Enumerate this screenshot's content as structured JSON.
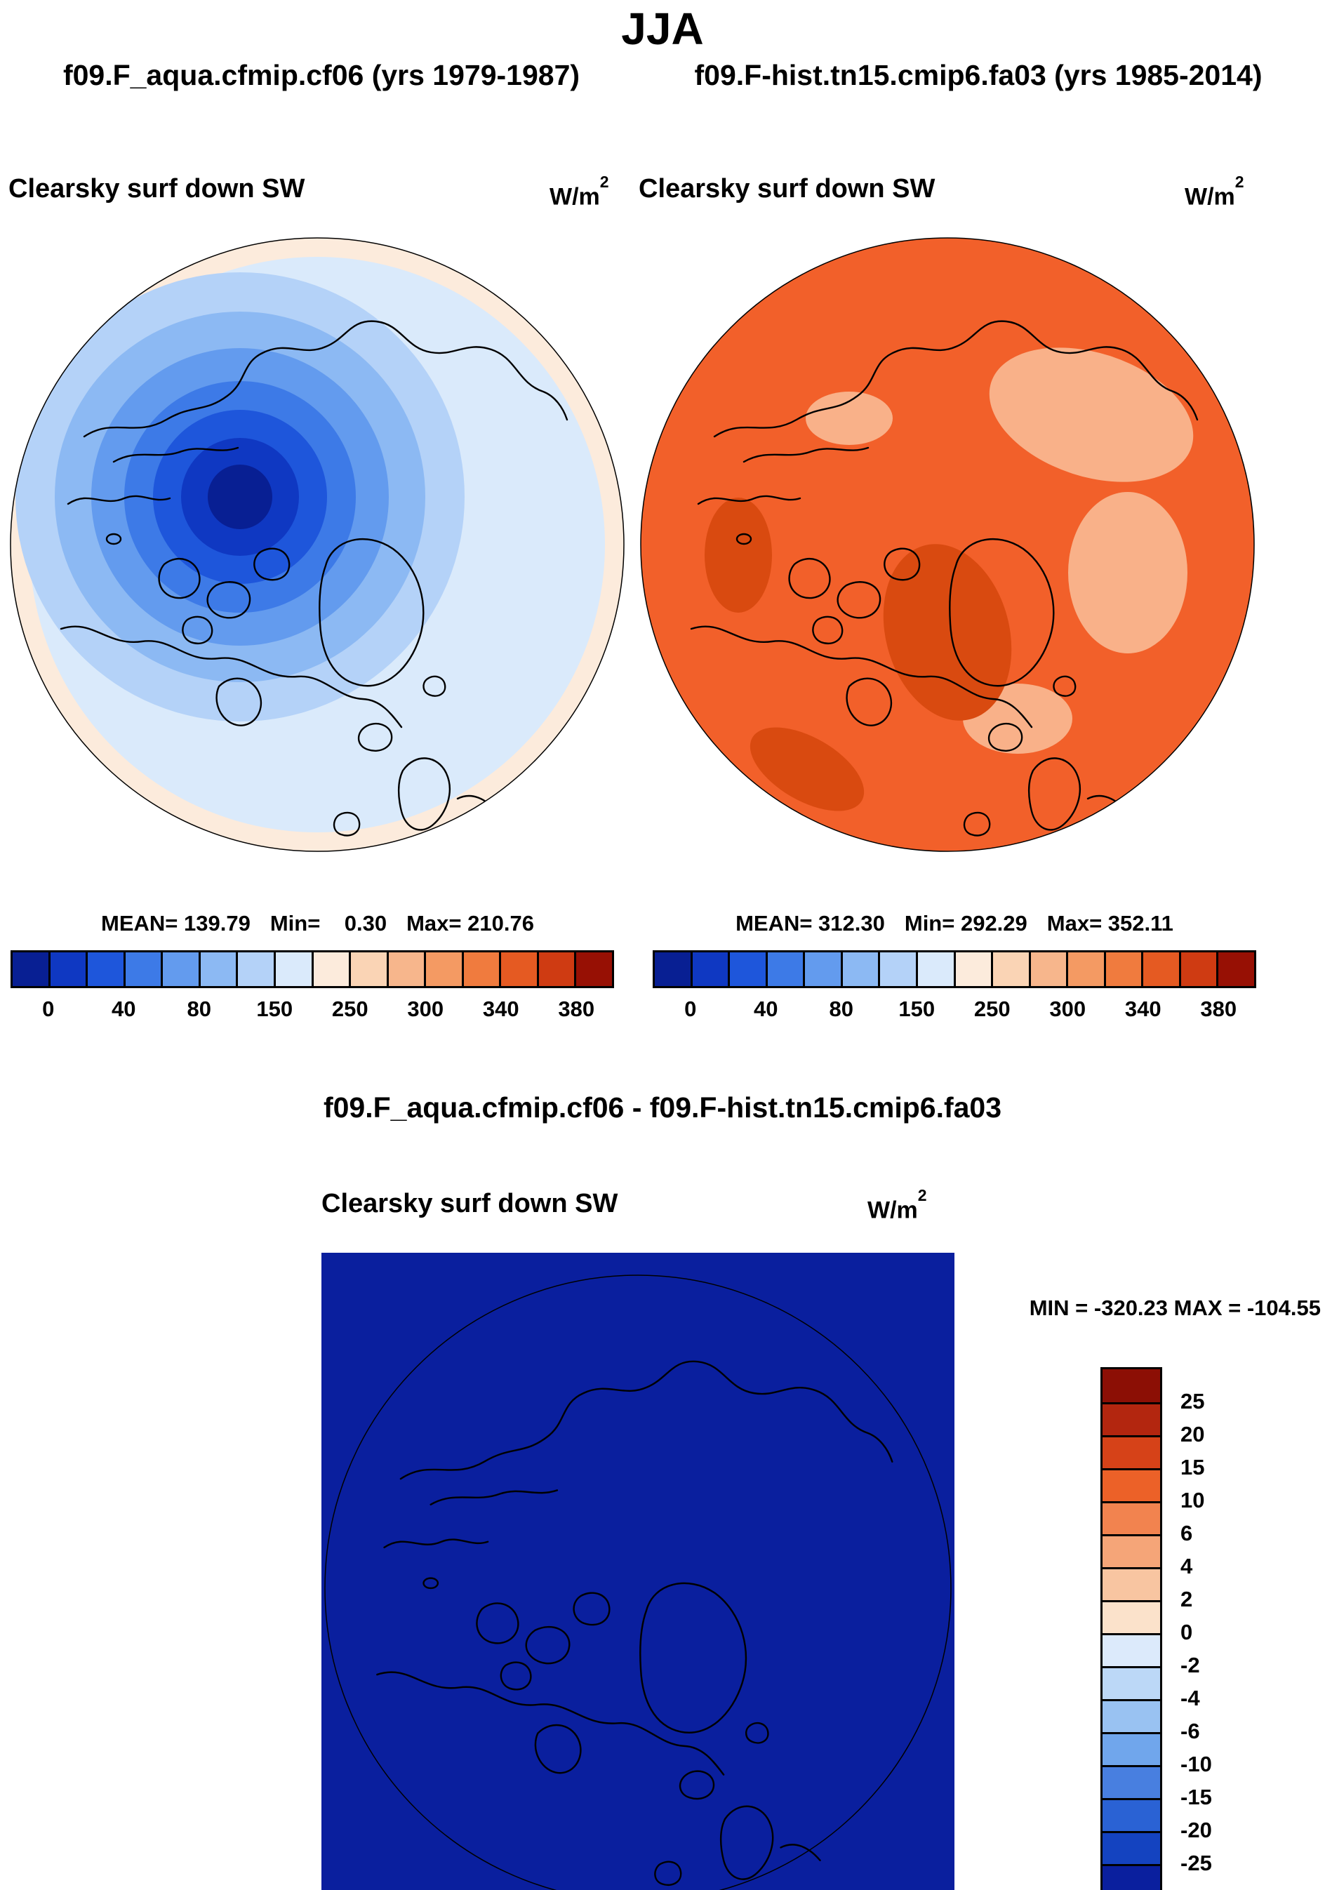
{
  "header": {
    "season_title": "JJA",
    "dataset_left": "f09.F_aqua.cfmip.cf06 (yrs 1979-1987)",
    "dataset_right": "f09.F-hist.tn15.cmip6.fa03 (yrs 1985-2014)"
  },
  "panel_left": {
    "title": "Clearsky surf down SW",
    "units_base": "W/m",
    "units_exp": "2",
    "mean_label": "MEAN= 139.79",
    "min_label": "Min=    0.30",
    "max_label": "Max= 210.76"
  },
  "panel_right": {
    "title": "Clearsky surf down SW",
    "units_base": "W/m",
    "units_exp": "2",
    "mean_label": "MEAN= 312.30",
    "min_label": "Min= 292.29",
    "max_label": "Max= 352.11"
  },
  "diff_section": {
    "title": "f09.F_aqua.cfmip.cf06 - f09.F-hist.tn15.cmip6.fa03",
    "panel_title": "Clearsky surf down SW",
    "units_base": "W/m",
    "units_exp": "2",
    "minmax_label": "MIN = -320.23 MAX = -104.55"
  },
  "shared_colorbar": {
    "ticks": [
      "0",
      "40",
      "80",
      "150",
      "250",
      "300",
      "340",
      "380"
    ],
    "colors": [
      "#081f93",
      "#0f38c2",
      "#1e56db",
      "#3d7ae7",
      "#639bee",
      "#8cb9f3",
      "#b4d2f8",
      "#daeafb",
      "#fcebdc",
      "#fad4b5",
      "#f7b68c",
      "#f49a63",
      "#f07b3e",
      "#e55a22",
      "#cf3b12",
      "#971004"
    ]
  },
  "diff_colorbar": {
    "ticks": [
      "25",
      "20",
      "15",
      "10",
      "6",
      "4",
      "2",
      "0",
      "-2",
      "-4",
      "-6",
      "-10",
      "-15",
      "-20",
      "-25"
    ],
    "colors": [
      "#8c0f05",
      "#b3260f",
      "#d64218",
      "#ec6128",
      "#f2834f",
      "#f5a578",
      "#f8c5a1",
      "#fbe2cb",
      "#dceafb",
      "#bcd8f7",
      "#99c2f2",
      "#70a6ec",
      "#487fe0",
      "#2a62d4",
      "#1443c0",
      "#0a1f9e"
    ]
  },
  "map_colors": {
    "left_edge_annulus": "#fcebdc",
    "left_base": "#daeafb",
    "left_core": "#081f93",
    "right_base": "#f2602a",
    "right_light_patch": "#f9b189",
    "right_dark_patch": "#d94a10",
    "diff_fill": "#0a1f9e"
  },
  "chart_data": [
    {
      "type": "heatmap",
      "subtype": "polar-stereographic-contour-map",
      "season": "JJA",
      "title": "Clearsky surf down SW",
      "dataset": "f09.F_aqua.cfmip.cf06 (yrs 1979-1987)",
      "units": "W/m^2",
      "stats": {
        "mean": 139.79,
        "min": 0.3,
        "max": 210.76
      },
      "colorbar_tick_labels": [
        0,
        40,
        80,
        150,
        250,
        300,
        340,
        380
      ],
      "colorbar_n_cells": 16,
      "legend_position": "bottom",
      "pattern": "Concentric contours: lowest values (dark blue, ~0-40) centered near the pole slightly left of map center, increasing outward through blues to light blue, with cream (~150-250) ring at the outer map edge"
    },
    {
      "type": "heatmap",
      "subtype": "polar-stereographic-contour-map",
      "season": "JJA",
      "title": "Clearsky surf down SW",
      "dataset": "f09.F-hist.tn15.cmip6.fa03 (yrs 1985-2014)",
      "units": "W/m^2",
      "stats": {
        "mean": 312.3,
        "min": 292.29,
        "max": 352.11
      },
      "colorbar_tick_labels": [
        0,
        40,
        80,
        150,
        250,
        300,
        340,
        380
      ],
      "colorbar_n_cells": 16,
      "legend_position": "bottom",
      "pattern": "Nearly uniform orange (~300-340) over the whole domain with lighter peach patches (~250-300) over parts of Siberia/Alaska and Scandinavia and darker red-orange patches (~340+) near Greenland and the left edge"
    },
    {
      "type": "heatmap",
      "subtype": "polar-stereographic-contour-map",
      "season": "JJA",
      "title": "Clearsky surf down SW",
      "dataset": "f09.F_aqua.cfmip.cf06 - f09.F-hist.tn15.cmip6.fa03",
      "units": "W/m^2",
      "stats": {
        "min": -320.23,
        "max": -104.55
      },
      "colorbar_tick_labels": [
        25,
        20,
        15,
        10,
        6,
        4,
        2,
        0,
        -2,
        -4,
        -6,
        -10,
        -15,
        -20,
        -25
      ],
      "colorbar_n_cells": 16,
      "legend_position": "right",
      "pattern": "Entire difference field is below -25 W/m^2, so the whole map is the darkest blue color"
    }
  ]
}
